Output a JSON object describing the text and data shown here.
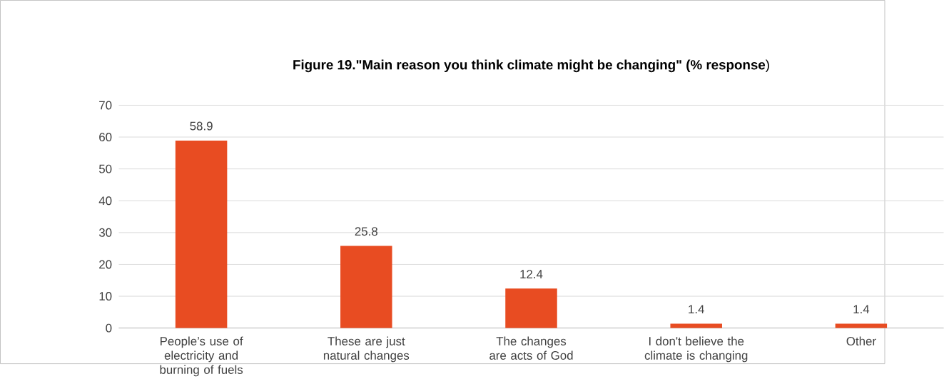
{
  "chart_data": {
    "type": "bar",
    "title": "**Figure 19.\"Main reason you think climate might be changing\"          (% response**)",
    "categories": [
      "People’s use of electricity and burning of fuels",
      "These are just natural changes",
      "The changes are acts of God",
      "I don't believe the climate is changing",
      "Other"
    ],
    "values": [
      58.9,
      25.8,
      12.4,
      1.4,
      1.4
    ],
    "color": "#e84c22",
    "ylim": [
      0,
      70
    ],
    "yticks": [
      0,
      10,
      20,
      30,
      40,
      50,
      60,
      70
    ],
    "grid": "y",
    "data_labels": true
  }
}
